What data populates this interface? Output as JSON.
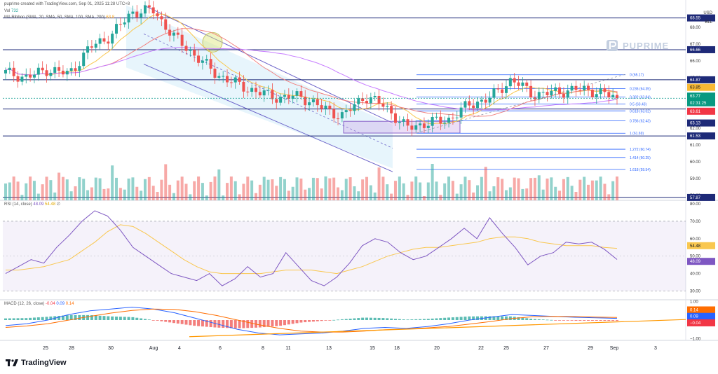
{
  "header": {
    "created": "puprime created with TradingView.com, Sep 01, 2025 11:28 UTC+8",
    "vol": "Vol",
    "vol_value": "732",
    "ma_ribbon": "MA Ribbon (SMA, 20, SMA, 50, SMA, 100, SMA, 200)",
    "ma_value": "63.8",
    "currency": "USD",
    "unit": "BLL"
  },
  "watermark": "PUPRIME",
  "brand": "TradingView",
  "colors": {
    "up": "#26a69a",
    "down": "#ef5350",
    "level_line": "#1e2a78",
    "fib": "#2962ff",
    "channel": "#6c63c9",
    "rsi_line": "#7e57c2",
    "rsi_ma": "#f9c74f",
    "macd": "#2962ff",
    "signal": "#ff6d00"
  },
  "price_axis": {
    "ticks": [
      "68.00",
      "67.00",
      "66.00",
      "65.00",
      "64.00",
      "63.00",
      "62.00",
      "61.00",
      "60.00",
      "59.00",
      "58.00"
    ],
    "labels": [
      {
        "text": "68.55",
        "bg": "#1e2a78",
        "fg": "#ffffff"
      },
      {
        "text": "66.66",
        "bg": "#1e2a78",
        "fg": "#ffffff"
      },
      {
        "text": "64.87",
        "bg": "#1e2a78",
        "fg": "#ffffff"
      },
      {
        "text": "63.85",
        "bg": "#f9b934",
        "fg": "#131722"
      },
      {
        "text": "63.77",
        "bg": "#089981",
        "fg": "#ffffff"
      },
      {
        "text": "02:31:25",
        "bg": "#089981",
        "fg": "#ffffff"
      },
      {
        "text": "63.61",
        "bg": "#f23645",
        "fg": "#ffffff"
      },
      {
        "text": "63.13",
        "bg": "#1e2a78",
        "fg": "#ffffff"
      },
      {
        "text": "61.53",
        "bg": "#1e2a78",
        "fg": "#ffffff"
      },
      {
        "text": "57.87",
        "bg": "#1e2a78",
        "fg": "#ffffff"
      }
    ]
  },
  "fib_labels": [
    "0 (65.17)",
    "0.236 (64.35)",
    "0.382 (63.84)",
    "0.5 (63.43)",
    "0.618 (63.02)",
    "0.786 (62.43)",
    "1 (61.69)",
    "1.272 (60.74)",
    "1.414 (60.25)",
    "1.618 (59.54)"
  ],
  "rsi": {
    "title": "RSI (14, close)",
    "rsi_value": "48.09",
    "ma_value": "54.48",
    "ticks": [
      "80.00",
      "70.00",
      "60.00",
      "50.00",
      "40.00",
      "30.00"
    ],
    "labels": [
      {
        "text": "54.48",
        "bg": "#f9c74f",
        "fg": "#131722"
      },
      {
        "text": "48.09",
        "bg": "#7e57c2",
        "fg": "#ffffff"
      }
    ]
  },
  "macd": {
    "title": "MACD (12, 26, close)",
    "hist_value": "-0.04",
    "macd_value": "0.09",
    "signal_value": "0.14",
    "ticks": [
      "1.00",
      "0.00",
      "−1.00"
    ],
    "labels": [
      {
        "text": "0.14",
        "bg": "#ff6d00",
        "fg": "#ffffff"
      },
      {
        "text": "0.09",
        "bg": "#2962ff",
        "fg": "#ffffff"
      },
      {
        "text": "−0.04",
        "bg": "#f23645",
        "fg": "#ffffff"
      }
    ]
  },
  "time_axis": [
    "25",
    "28",
    "30",
    "Aug",
    "4",
    "6",
    "8",
    "11",
    "13",
    "15",
    "18",
    "20",
    "22",
    "25",
    "27",
    "29",
    "Sep",
    "3"
  ],
  "chart_data": {
    "type": "candlestick",
    "price_ylim": [
      57.7,
      69.2
    ],
    "x_dates": [
      "Jul 22",
      "Jul 23",
      "Jul 24",
      "Jul 25",
      "Jul 28",
      "Jul 29",
      "Jul 30",
      "Jul 31",
      "Aug 1",
      "Aug 4",
      "Aug 5",
      "Aug 6",
      "Aug 7",
      "Aug 8",
      "Aug 11",
      "Aug 12",
      "Aug 13",
      "Aug 14",
      "Aug 15",
      "Aug 18",
      "Aug 19",
      "Aug 20",
      "Aug 21",
      "Aug 22",
      "Aug 25",
      "Aug 26",
      "Aug 27",
      "Aug 28",
      "Aug 29",
      "Sep 1"
    ],
    "daily_close_estimate": [
      65.3,
      65.0,
      65.5,
      65.2,
      66.8,
      67.5,
      68.9,
      69.0,
      67.4,
      66.3,
      65.2,
      64.6,
      64.1,
      63.8,
      63.9,
      63.2,
      62.7,
      63.9,
      63.3,
      62.0,
      62.3,
      62.5,
      63.4,
      63.8,
      64.9,
      64.0,
      64.1,
      64.3,
      64.2,
      63.77
    ],
    "last_close": 63.77,
    "horizontal_levels": [
      68.55,
      66.66,
      64.87,
      63.13,
      61.53,
      57.87
    ],
    "fibonacci": [
      {
        "ratio": 0,
        "price": 65.17
      },
      {
        "ratio": 0.236,
        "price": 64.35
      },
      {
        "ratio": 0.382,
        "price": 63.84
      },
      {
        "ratio": 0.5,
        "price": 63.43
      },
      {
        "ratio": 0.618,
        "price": 63.02
      },
      {
        "ratio": 0.786,
        "price": 62.43
      },
      {
        "ratio": 1,
        "price": 61.69
      },
      {
        "ratio": 1.272,
        "price": 60.74
      },
      {
        "ratio": 1.414,
        "price": 60.25
      },
      {
        "ratio": 1.618,
        "price": 59.54
      }
    ],
    "rsi_ylim": [
      25,
      82
    ],
    "rsi_bands": [
      30,
      70
    ],
    "rsi_series": [
      40,
      44,
      48,
      46,
      55,
      62,
      70,
      76,
      73,
      65,
      55,
      50,
      45,
      40,
      38,
      36,
      40,
      33,
      37,
      44,
      38,
      40,
      52,
      44,
      36,
      33,
      38,
      46,
      56,
      60,
      58,
      52,
      48,
      50,
      55,
      60,
      66,
      60,
      72,
      63,
      55,
      45,
      50,
      52,
      58,
      57,
      58,
      54,
      48.09
    ],
    "rsi_ma_series": [
      42,
      42,
      43,
      44,
      46,
      48,
      53,
      58,
      64,
      68,
      67,
      63,
      58,
      53,
      48,
      44,
      41,
      40,
      40,
      40,
      40,
      41,
      42,
      42,
      42,
      41,
      40,
      42,
      44,
      47,
      50,
      52,
      54,
      55,
      55,
      56,
      57,
      58,
      60,
      61,
      61,
      60,
      58,
      57,
      56,
      56,
      56,
      55,
      54.48
    ],
    "macd_ylim": [
      -1.1,
      1.1
    ],
    "macd_series": [
      -0.3,
      -0.2,
      0.0,
      0.3,
      0.5,
      0.6,
      0.7,
      0.6,
      0.4,
      0.1,
      -0.2,
      -0.5,
      -0.7,
      -0.8,
      -0.75,
      -0.7,
      -0.6,
      -0.45,
      -0.4,
      -0.45,
      -0.35,
      -0.2,
      0.0,
      0.15,
      0.3,
      0.25,
      0.2,
      0.15,
      0.12,
      0.09
    ],
    "signal_series": [
      -0.4,
      -0.32,
      -0.2,
      0.0,
      0.2,
      0.38,
      0.52,
      0.6,
      0.58,
      0.45,
      0.25,
      0.0,
      -0.25,
      -0.45,
      -0.6,
      -0.65,
      -0.65,
      -0.6,
      -0.52,
      -0.48,
      -0.42,
      -0.35,
      -0.22,
      -0.08,
      0.08,
      0.18,
      0.2,
      0.19,
      0.16,
      0.14
    ],
    "histogram_last": -0.04
  }
}
